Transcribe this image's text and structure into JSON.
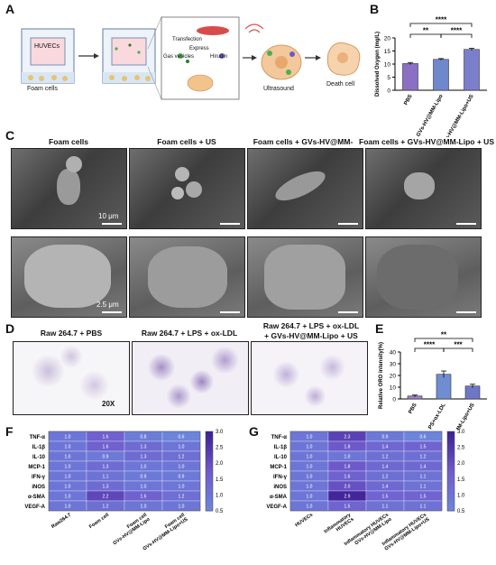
{
  "panel_letters": {
    "a": "A",
    "b": "B",
    "c": "C",
    "d": "D",
    "e": "E",
    "f": "F",
    "g": "G"
  },
  "panel_a": {
    "well_label": "HUVECs",
    "foam_label": "Foam cells",
    "inset_labels": [
      "Transfection",
      "Express",
      "Gas vesicles",
      "Hirudin"
    ],
    "ultrasound": "Ultrasound",
    "death": "Death cell"
  },
  "panel_c": {
    "column_titles": [
      "Foam cells",
      "Foam cells + US",
      "Foam cells + GVs-HV@MM-Lipo",
      "Foam cells + GVs-HV@MM-Lipo + US"
    ],
    "scale_sem": "10 μm",
    "scale_tem": "2.5 μm"
  },
  "panel_d": {
    "titles": [
      "Raw 264.7 + PBS",
      "Raw 264.7 + LPS + ox-LDL",
      "Raw 264.7 + LPS + ox-LDL\n+ GVs-HV@MM-Lipo + US"
    ],
    "magnification": "20X"
  },
  "chart_data": [
    {
      "type": "bar",
      "panel": "B",
      "categories": [
        "PBS",
        "GVs-HV@MM-Lipo",
        "GVs-HV@MM-Lipo+US"
      ],
      "values": [
        10.2,
        11.8,
        15.6
      ],
      "errors": [
        0.4,
        0.3,
        0.4
      ],
      "colors": [
        "#8b6fc4",
        "#6f88cc",
        "#7b7fcb"
      ],
      "ylabel": "Dissolved Oxygen (mg/L)",
      "ylim": [
        0,
        20
      ],
      "yticks": [
        0,
        5,
        10,
        15,
        20
      ],
      "significance": [
        "****",
        "**",
        "****"
      ]
    },
    {
      "type": "bar",
      "panel": "E",
      "categories": [
        "PBS",
        "LPS+ox-LDL",
        "GVs-HV@MM-Lipo+US"
      ],
      "values": [
        2.5,
        21,
        11
      ],
      "errors": [
        0.8,
        2.8,
        1.5
      ],
      "colors": [
        "#a07cd0",
        "#6f8ed2",
        "#6d77c6"
      ],
      "ylabel": "Relative ORO intensity(%)",
      "ylim": [
        0,
        40
      ],
      "yticks": [
        0,
        10,
        20,
        30,
        40
      ],
      "significance": [
        "**",
        "****",
        "***"
      ]
    },
    {
      "type": "heatmap",
      "panel": "F",
      "rows": [
        "TNF-α",
        "IL-1β",
        "IL-10",
        "MCP-1",
        "IFN-γ",
        "iNOS",
        "α-SMA",
        "VEGF-A"
      ],
      "columns": [
        "Raw264.7",
        "Foam cell",
        "Foam cell\nGVs-HV@MM-Lipo",
        "Foam cell\nGVs-HV@MM-Lipo+US"
      ],
      "values": [
        [
          1.0,
          1.6,
          0.8,
          0.6
        ],
        [
          1.0,
          1.6,
          1.3,
          1.0
        ],
        [
          1.0,
          0.9,
          1.3,
          1.2
        ],
        [
          1.0,
          1.3,
          1.0,
          1.0
        ],
        [
          1.0,
          1.1,
          0.9,
          0.9
        ],
        [
          1.0,
          1.3,
          1.0,
          1.0
        ],
        [
          1.0,
          2.2,
          1.6,
          1.2
        ],
        [
          1.0,
          1.2,
          1.0,
          1.0
        ]
      ],
      "colorbar_ticks": [
        0.5,
        1.0,
        1.5,
        2.0,
        2.5,
        3.0
      ],
      "range": [
        0.5,
        3.0
      ]
    },
    {
      "type": "heatmap",
      "panel": "G",
      "rows": [
        "TNF-α",
        "IL-1β",
        "IL-10",
        "MCP-1",
        "IFN-γ",
        "iNOS",
        "α-SMA",
        "VEGF-A"
      ],
      "columns": [
        "HUVECs",
        "Inflammatory\nHUVECs",
        "Inflammatory HUVECs\nGVs-HV@MM-Lipo",
        "Inflammatory HUVECs\nGVs-HV@MM-Lipo+US"
      ],
      "values": [
        [
          1.0,
          2.3,
          0.9,
          0.6
        ],
        [
          1.0,
          1.8,
          1.4,
          1.5
        ],
        [
          1.0,
          1.0,
          1.2,
          1.2
        ],
        [
          1.0,
          1.8,
          1.4,
          1.4
        ],
        [
          1.0,
          1.6,
          1.2,
          1.1
        ],
        [
          1.0,
          2.0,
          1.4,
          1.1
        ],
        [
          1.0,
          2.9,
          1.5,
          1.5
        ],
        [
          1.0,
          1.5,
          1.1,
          1.1
        ]
      ],
      "colorbar_ticks": [
        0.5,
        1.0,
        1.5,
        2.0,
        2.5,
        3.0
      ],
      "range": [
        0.5,
        3.0
      ]
    }
  ]
}
